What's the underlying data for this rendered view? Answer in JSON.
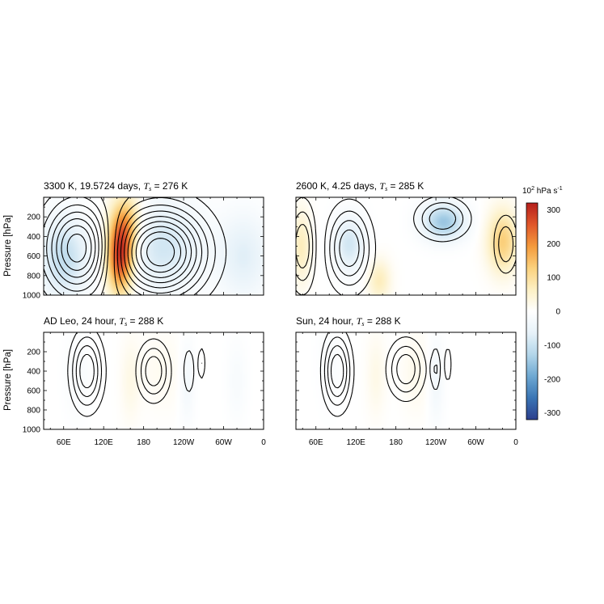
{
  "chart_data": {
    "type": "heatmap",
    "panels": [
      {
        "id": "p1",
        "title_main": "3300 K, 19.5724 days, ",
        "title_var": "T",
        "title_sub": "s",
        "title_tail": " = 276 K",
        "ylabel": "Pressure [hPa]",
        "field_features": [
          {
            "lon": 145,
            "p": 600,
            "value": 300,
            "sx": 14,
            "sp": 260
          },
          {
            "lon": 155,
            "p": 250,
            "value": 130,
            "sx": 16,
            "sp": 200
          },
          {
            "lon": 60,
            "p": 620,
            "value": -110,
            "sx": 26,
            "sp": 300
          },
          {
            "lon": 210,
            "p": 500,
            "value": -90,
            "sx": 40,
            "sp": 320
          },
          {
            "lon": 330,
            "p": 600,
            "value": -70,
            "sx": 26,
            "sp": 300
          }
        ],
        "contours": [
          {
            "lon": 205,
            "p": 560,
            "peak": 10,
            "sx": 46,
            "sp": 310
          },
          {
            "lon": 82,
            "p": 520,
            "peak": -8,
            "sx": 34,
            "sp": 320
          }
        ]
      },
      {
        "id": "p2",
        "title_main": "2600 K, 4.25 days, ",
        "title_var": "T",
        "title_sub": "s",
        "title_tail": " = 285 K",
        "ylabel": "",
        "field_features": [
          {
            "lon": 340,
            "p": 450,
            "value": 130,
            "sx": 16,
            "sp": 220
          },
          {
            "lon": 38,
            "p": 500,
            "value": 70,
            "sx": 10,
            "sp": 260
          },
          {
            "lon": 252,
            "p": 250,
            "value": -150,
            "sx": 22,
            "sp": 130
          },
          {
            "lon": 110,
            "p": 480,
            "value": -90,
            "sx": 16,
            "sp": 200
          },
          {
            "lon": 155,
            "p": 850,
            "value": 70,
            "sx": 12,
            "sp": 150
          }
        ],
        "contours": [
          {
            "lon": 40,
            "p": 500,
            "peak": 4,
            "sx": 14,
            "sp": 300
          },
          {
            "lon": 250,
            "p": 220,
            "peak": 4,
            "sx": 26,
            "sp": 140
          },
          {
            "lon": 345,
            "p": 480,
            "peak": 3,
            "sx": 12,
            "sp": 200
          },
          {
            "lon": 110,
            "p": 520,
            "peak": -5,
            "sx": 22,
            "sp": 280
          }
        ]
      },
      {
        "id": "p3",
        "title_main": "AD Leo, 24 hour, ",
        "title_var": "T",
        "title_sub": "s",
        "title_tail": " = 288 K",
        "ylabel": "Pressure [hPa]",
        "field_features": [
          {
            "lon": 160,
            "p": 500,
            "value": 25,
            "sx": 10,
            "sp": 300
          },
          {
            "lon": 210,
            "p": 400,
            "value": 15,
            "sx": 25,
            "sp": 300
          },
          {
            "lon": 245,
            "p": 500,
            "value": -35,
            "sx": 8,
            "sp": 300
          },
          {
            "lon": 80,
            "p": 450,
            "value": -20,
            "sx": 12,
            "sp": 300
          },
          {
            "lon": 320,
            "p": 500,
            "value": -20,
            "sx": 10,
            "sp": 300
          }
        ],
        "contours": [
          {
            "lon": 95,
            "p": 400,
            "peak": -5,
            "sx": 16,
            "sp": 260
          },
          {
            "lon": 195,
            "p": 400,
            "peak": 4,
            "sx": 16,
            "sp": 200
          },
          {
            "lon": 248,
            "p": 400,
            "peak": 2,
            "sx": 6,
            "sp": 180
          },
          {
            "lon": 267,
            "p": 320,
            "peak": 2,
            "sx": 4,
            "sp": 130
          }
        ]
      },
      {
        "id": "p4",
        "title_main": "Sun, 24 hour, ",
        "title_var": "T",
        "title_sub": "s",
        "title_tail": " = 288 K",
        "ylabel": "",
        "field_features": [
          {
            "lon": 150,
            "p": 450,
            "value": 25,
            "sx": 10,
            "sp": 300
          },
          {
            "lon": 210,
            "p": 420,
            "value": 20,
            "sx": 15,
            "sp": 300
          },
          {
            "lon": 240,
            "p": 500,
            "value": -35,
            "sx": 8,
            "sp": 300
          },
          {
            "lon": 80,
            "p": 300,
            "value": -15,
            "sx": 12,
            "sp": 300
          }
        ],
        "contours": [
          {
            "lon": 92,
            "p": 400,
            "peak": -5,
            "sx": 14,
            "sp": 260
          },
          {
            "lon": 195,
            "p": 380,
            "peak": 4,
            "sx": 18,
            "sp": 200
          },
          {
            "lon": 240,
            "p": 380,
            "peak": 2,
            "sx": 5,
            "sp": 170
          },
          {
            "lon": 258,
            "p": 330,
            "peak": 2,
            "sx": 4,
            "sp": 140
          }
        ]
      }
    ],
    "x_axis": {
      "range": [
        30,
        360
      ],
      "ticks": [
        {
          "lon": 60,
          "label": "60E"
        },
        {
          "lon": 120,
          "label": "120E"
        },
        {
          "lon": 180,
          "label": "180"
        },
        {
          "lon": 240,
          "label": "120W"
        },
        {
          "lon": 300,
          "label": "60W"
        },
        {
          "lon": 360,
          "label": "0"
        }
      ]
    },
    "y_axis": {
      "range": [
        1000,
        0
      ],
      "ticks": [
        200,
        400,
        600,
        800,
        1000
      ]
    },
    "colorbar": {
      "unit_base": "10",
      "unit_exp": "2",
      "unit_tail": " hPa s",
      "unit_tail_exp": "-1",
      "range": [
        -320,
        320
      ],
      "ticks": [
        300,
        200,
        100,
        0,
        -100,
        -200,
        -300
      ],
      "tick_labels": [
        "300",
        "200",
        "100",
        "0",
        "-100",
        "-200",
        "-300"
      ],
      "colors": [
        "#2c3f8e",
        "#3a75b4",
        "#6ea8d2",
        "#b3d6ea",
        "#e7f2f9",
        "#ffffff",
        "#fdf0c4",
        "#fbd17d",
        "#f49a3c",
        "#e0572a",
        "#b51e1c"
      ]
    }
  }
}
